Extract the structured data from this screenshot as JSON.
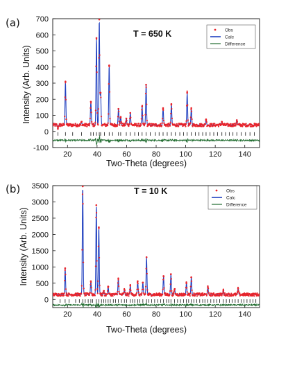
{
  "chart_data": [
    {
      "panel_label": "(a)",
      "type": "line",
      "annotation": "T = 650 K",
      "xlabel": "Two-Theta (degrees)",
      "ylabel": "Intensity (Arb. Units)",
      "xlim": [
        10,
        150
      ],
      "ylim": [
        -100,
        700
      ],
      "xticks": [
        20,
        40,
        60,
        80,
        100,
        120,
        140
      ],
      "yticks": [
        -100,
        0,
        100,
        200,
        300,
        400,
        500,
        600,
        700
      ],
      "legend": {
        "position": "top-right",
        "entries": [
          "Obs",
          "Calc",
          "Difference"
        ]
      },
      "colors": {
        "obs": "#e8232a",
        "calc": "#1f3fbf",
        "difference": "#1f6b2e",
        "ticks": "#111111"
      },
      "background": 40,
      "difference_offset": -55,
      "series": [
        {
          "name": "Obs",
          "style": "points"
        },
        {
          "name": "Calc",
          "style": "line"
        },
        {
          "name": "Difference",
          "style": "line"
        }
      ],
      "peaks": [
        {
          "x": 13.5,
          "y": 20
        },
        {
          "x": 18.6,
          "y": 310
        },
        {
          "x": 29.5,
          "y": 60
        },
        {
          "x": 35.8,
          "y": 185
        },
        {
          "x": 39.6,
          "y": 580
        },
        {
          "x": 41.5,
          "y": 695
        },
        {
          "x": 42.4,
          "y": 240
        },
        {
          "x": 48.2,
          "y": 410
        },
        {
          "x": 54.5,
          "y": 140
        },
        {
          "x": 56.0,
          "y": 90
        },
        {
          "x": 59.8,
          "y": 80
        },
        {
          "x": 62.5,
          "y": 115
        },
        {
          "x": 70.5,
          "y": 155
        },
        {
          "x": 73.2,
          "y": 290
        },
        {
          "x": 84.7,
          "y": 145
        },
        {
          "x": 90.3,
          "y": 170
        },
        {
          "x": 101.0,
          "y": 240
        },
        {
          "x": 103.8,
          "y": 145
        },
        {
          "x": 113.8,
          "y": 75
        },
        {
          "x": 124.5,
          "y": 60
        },
        {
          "x": 134.6,
          "y": 70
        }
      ],
      "reflection_ticks": [
        13.5,
        18.6,
        23.5,
        29.5,
        35.8,
        37.5,
        39.6,
        41.5,
        42.4,
        45.0,
        48.2,
        50.5,
        54.5,
        56.0,
        59.8,
        62.5,
        65.5,
        68.0,
        70.5,
        73.2,
        76.0,
        79.5,
        82.0,
        84.7,
        87.5,
        90.3,
        93.0,
        96.0,
        98.5,
        101.0,
        103.8,
        106.5,
        109.0,
        111.5,
        113.8,
        116.5,
        119.0,
        121.5,
        124.5,
        127.0,
        129.5,
        132.0,
        134.6,
        137.5,
        140.5,
        143.5,
        146.5
      ]
    },
    {
      "panel_label": "(b)",
      "type": "line",
      "annotation": "T = 10 K",
      "xlabel": "Two-Theta (degrees)",
      "ylabel": "Intensity (Arb. Units)",
      "xlim": [
        10,
        150
      ],
      "ylim": [
        -250,
        3500
      ],
      "xticks": [
        20,
        40,
        60,
        80,
        100,
        120,
        140
      ],
      "yticks": [
        0,
        500,
        1000,
        1500,
        2000,
        2500,
        3000,
        3500
      ],
      "legend": {
        "position": "top-right",
        "entries": [
          "Obs",
          "Calc",
          "Difference"
        ]
      },
      "colors": {
        "obs": "#e8232a",
        "calc": "#1f3fbf",
        "difference": "#1f6b2e",
        "ticks": "#111111"
      },
      "background": 150,
      "difference_offset": -170,
      "series": [
        {
          "name": "Obs",
          "style": "points"
        },
        {
          "name": "Calc",
          "style": "line"
        },
        {
          "name": "Difference",
          "style": "line"
        }
      ],
      "peaks": [
        {
          "x": 18.4,
          "y": 960
        },
        {
          "x": 25.5,
          "y": 180
        },
        {
          "x": 30.3,
          "y": 3480
        },
        {
          "x": 35.8,
          "y": 560
        },
        {
          "x": 39.5,
          "y": 2900
        },
        {
          "x": 41.2,
          "y": 2220
        },
        {
          "x": 44.5,
          "y": 260
        },
        {
          "x": 47.5,
          "y": 400
        },
        {
          "x": 54.4,
          "y": 650
        },
        {
          "x": 58.5,
          "y": 300
        },
        {
          "x": 62.5,
          "y": 420
        },
        {
          "x": 67.5,
          "y": 560
        },
        {
          "x": 71.0,
          "y": 520
        },
        {
          "x": 73.5,
          "y": 1300
        },
        {
          "x": 85.0,
          "y": 720
        },
        {
          "x": 90.0,
          "y": 780
        },
        {
          "x": 92.5,
          "y": 320
        },
        {
          "x": 100.5,
          "y": 500
        },
        {
          "x": 103.8,
          "y": 680
        },
        {
          "x": 115.0,
          "y": 380
        },
        {
          "x": 125.5,
          "y": 280
        },
        {
          "x": 135.5,
          "y": 330
        }
      ],
      "reflection_ticks": [
        15.0,
        18.4,
        21.0,
        25.5,
        28.0,
        30.3,
        32.0,
        34.0,
        35.8,
        37.0,
        39.5,
        41.2,
        43.0,
        44.5,
        46.0,
        47.5,
        49.0,
        51.0,
        52.5,
        54.4,
        56.5,
        58.5,
        60.0,
        62.5,
        64.0,
        65.5,
        67.5,
        69.0,
        71.0,
        73.5,
        75.0,
        77.0,
        79.0,
        81.0,
        83.0,
        85.0,
        87.0,
        88.5,
        90.0,
        92.5,
        94.5,
        96.5,
        98.5,
        100.5,
        102.0,
        103.8,
        105.5,
        107.5,
        109.5,
        111.5,
        113.0,
        115.0,
        117.0,
        119.0,
        121.0,
        123.0,
        125.5,
        127.5,
        129.5,
        131.5,
        133.5,
        135.5,
        137.5,
        139.5,
        141.5,
        143.5,
        145.5,
        147.5
      ]
    }
  ]
}
